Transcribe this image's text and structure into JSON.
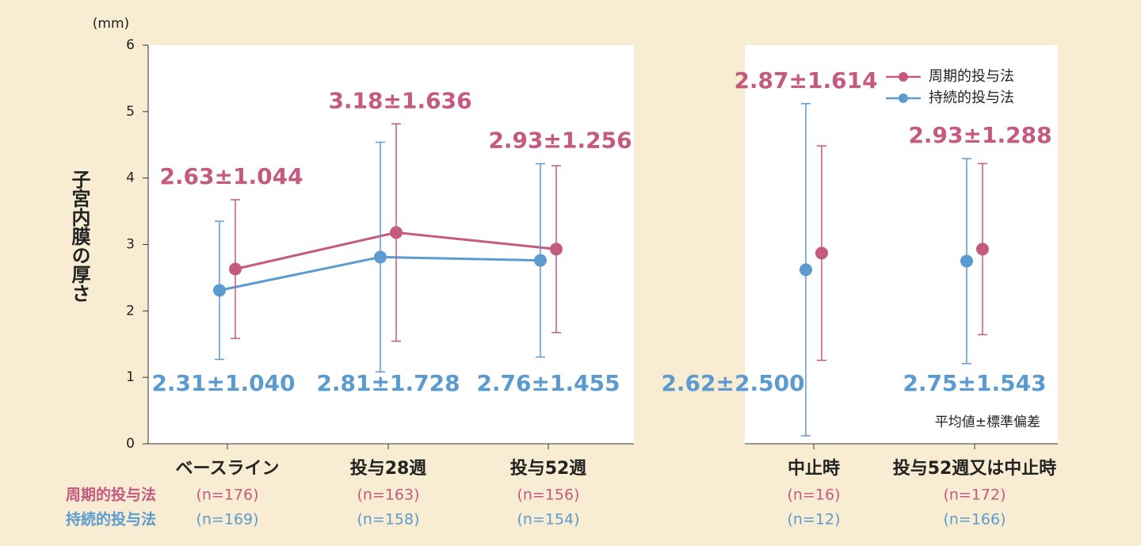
{
  "chart_data": {
    "type": "errorbar-line",
    "y_axis_label": "子宮内膜の厚さ",
    "y_unit": "(mm)",
    "note": "平均値±標準偏差",
    "categories": [
      "ベースライン",
      "投与28週",
      "投与52週",
      "中止時",
      "投与52週又は中止時"
    ],
    "axis_break_after_index": 2,
    "ylim": [
      0,
      6
    ],
    "yticks": [
      0,
      1,
      2,
      3,
      4,
      5,
      6
    ],
    "series": [
      {
        "name": "周期的投与法",
        "color": "#c45a80",
        "values": [
          2.63,
          3.18,
          2.93,
          2.87,
          2.93
        ],
        "errors": [
          1.044,
          1.636,
          1.256,
          1.614,
          1.288
        ],
        "value_labels": [
          "2.63±1.044",
          "3.18±1.636",
          "2.93±1.256",
          "2.87±1.614",
          "2.93±1.288"
        ],
        "n_labels": [
          "(n=176)",
          "(n=163)",
          "(n=156)",
          "(n=16)",
          "(n=172)"
        ]
      },
      {
        "name": "持続的投与法",
        "color": "#5b9bd0",
        "values": [
          2.31,
          2.81,
          2.76,
          2.62,
          2.75
        ],
        "errors": [
          1.04,
          1.728,
          1.455,
          2.5,
          1.543
        ],
        "value_labels": [
          "2.31±1.040",
          "2.81±1.728",
          "2.76±1.455",
          "2.62±2.500",
          "2.75±1.543"
        ],
        "n_labels": [
          "(n=169)",
          "(n=158)",
          "(n=154)",
          "(n=12)",
          "(n=166)"
        ]
      }
    ]
  }
}
